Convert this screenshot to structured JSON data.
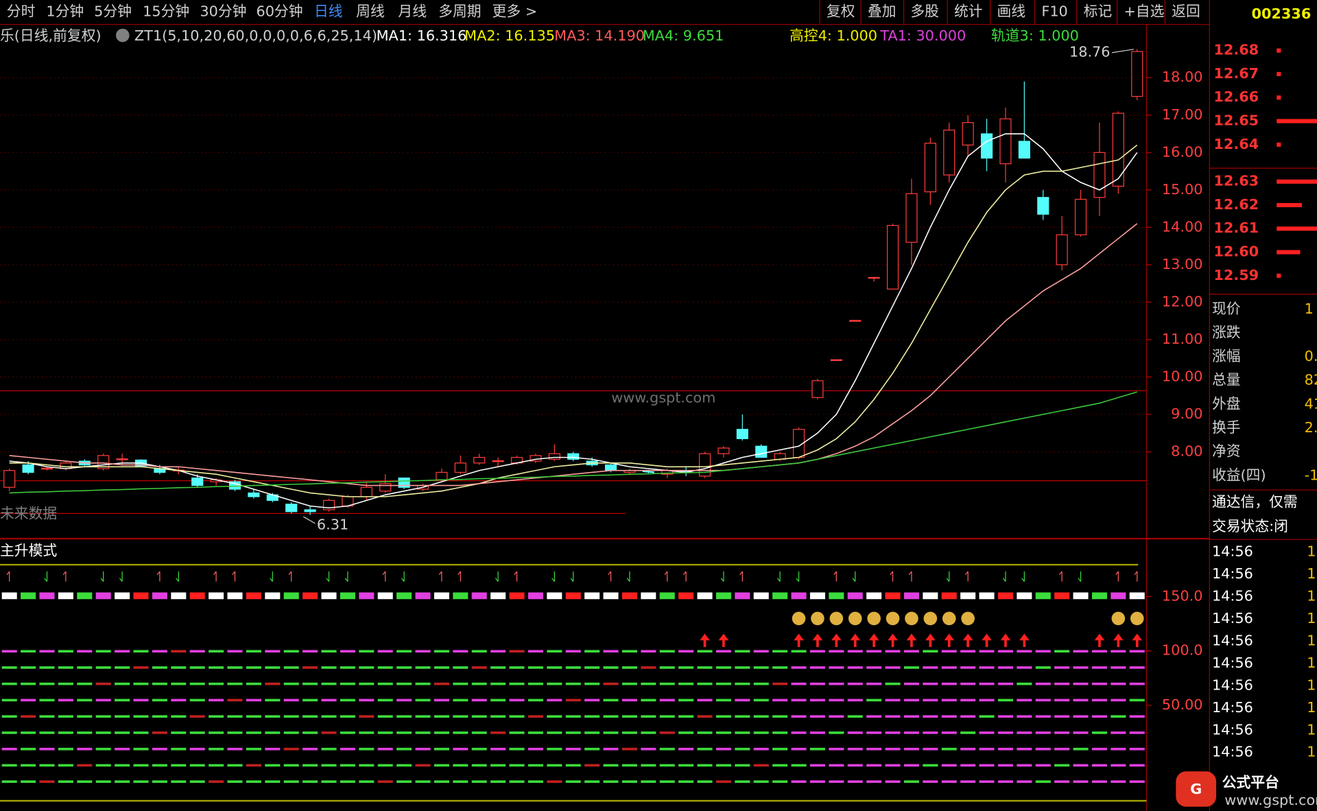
{
  "toolbar": {
    "tabs": [
      "分时",
      "1分钟",
      "5分钟",
      "15分钟",
      "30分钟",
      "60分钟",
      "日线",
      "周线",
      "月线",
      "多周期",
      "更多 >"
    ],
    "active": 6,
    "buttons": [
      "复权",
      "叠加",
      "多股",
      "统计",
      "画线",
      "F10",
      "标记",
      "+自选",
      "返回"
    ],
    "code": "002336"
  },
  "info_bar": {
    "name": "乐(日线,前复权)",
    "indicator": "ZT1(5,10,20,60,0,0,0,0,6,6,25,14)",
    "items": [
      {
        "text": "MA1: 16.316",
        "color": "#ffffff"
      },
      {
        "text": "MA2: 16.135",
        "color": "#f0f000"
      },
      {
        "text": "MA3: 14.190",
        "color": "#ff5a5a"
      },
      {
        "text": "MA4: 9.651",
        "color": "#3cdc3c"
      },
      {
        "text": "高控4: 1.000",
        "color": "#f0f000"
      },
      {
        "text": "TA1: 30.000",
        "color": "#e040e0"
      },
      {
        "text": "轨道3: 1.000",
        "color": "#3cdc3c"
      }
    ]
  },
  "chart_data": {
    "type": "candlestick",
    "categories": [
      null,
      null,
      null,
      null,
      null,
      null,
      null,
      null,
      null,
      null,
      null,
      null,
      null,
      null,
      null,
      null,
      null,
      null,
      null,
      null,
      null,
      null,
      null,
      null,
      null,
      null,
      null,
      null,
      null,
      null,
      null,
      null,
      null,
      null,
      null,
      null,
      null,
      null,
      null,
      null,
      null,
      null,
      null,
      null,
      null,
      null,
      null,
      null,
      null,
      null,
      null,
      null,
      null,
      null,
      null,
      null,
      null,
      null,
      null,
      null,
      null
    ],
    "open": [
      7.05,
      7.65,
      7.55,
      7.55,
      7.75,
      7.55,
      7.8,
      7.78,
      7.55,
      7.5,
      7.3,
      7.2,
      7.2,
      6.9,
      6.85,
      6.6,
      6.45,
      6.45,
      6.55,
      6.8,
      6.95,
      7.3,
      7.0,
      7.25,
      7.45,
      7.7,
      7.75,
      7.7,
      7.75,
      7.8,
      7.95,
      7.75,
      7.65,
      7.45,
      7.48,
      7.4,
      7.5,
      7.35,
      7.95,
      8.6,
      8.15,
      7.8,
      7.85,
      9.45,
      10.45,
      11.5,
      12.65,
      12.35,
      13.6,
      14.95,
      15.4,
      16.2,
      16.5,
      15.7,
      16.3,
      14.8,
      13.0,
      13.8,
      14.8,
      15.1,
      17.5
    ],
    "high": [
      7.55,
      7.75,
      7.6,
      7.75,
      7.8,
      7.95,
      7.95,
      7.8,
      7.65,
      7.6,
      7.4,
      7.3,
      7.25,
      7.0,
      6.9,
      6.65,
      6.55,
      6.75,
      6.85,
      7.2,
      7.4,
      7.3,
      7.15,
      7.55,
      7.9,
      7.95,
      7.85,
      7.9,
      7.95,
      8.2,
      8.0,
      7.85,
      7.7,
      7.55,
      7.52,
      7.55,
      7.6,
      8.0,
      8.15,
      9.0,
      8.2,
      8.0,
      8.65,
      9.95,
      10.45,
      11.5,
      12.68,
      14.1,
      15.3,
      16.4,
      16.8,
      17.0,
      16.9,
      17.2,
      17.9,
      15.0,
      14.3,
      15.0,
      16.8,
      17.1,
      18.76
    ],
    "low": [
      6.95,
      7.4,
      7.5,
      7.5,
      7.6,
      7.5,
      7.65,
      7.6,
      7.4,
      7.4,
      7.05,
      7.1,
      6.95,
      6.75,
      6.65,
      6.35,
      6.31,
      6.4,
      6.5,
      6.7,
      6.9,
      7.0,
      6.95,
      7.2,
      7.4,
      7.65,
      7.6,
      7.65,
      7.7,
      7.75,
      7.75,
      7.6,
      7.45,
      7.4,
      7.4,
      7.3,
      7.35,
      7.3,
      7.85,
      8.3,
      7.85,
      7.75,
      7.8,
      9.4,
      10.45,
      11.5,
      12.55,
      12.35,
      13.0,
      14.6,
      15.2,
      15.9,
      15.5,
      15.2,
      15.9,
      14.2,
      12.85,
      13.75,
      14.3,
      14.9,
      17.4
    ],
    "close": [
      7.5,
      7.45,
      7.55,
      7.7,
      7.65,
      7.9,
      7.8,
      7.62,
      7.45,
      7.5,
      7.1,
      7.25,
      7.0,
      6.8,
      6.7,
      6.4,
      6.4,
      6.7,
      6.8,
      7.05,
      7.15,
      7.05,
      7.1,
      7.45,
      7.7,
      7.85,
      7.75,
      7.85,
      7.9,
      7.95,
      7.8,
      7.65,
      7.5,
      7.5,
      7.45,
      7.5,
      7.45,
      7.95,
      8.1,
      8.35,
      7.85,
      7.95,
      8.6,
      9.9,
      10.45,
      11.5,
      12.65,
      14.05,
      14.9,
      16.25,
      16.6,
      16.8,
      15.85,
      16.9,
      15.85,
      14.35,
      13.8,
      14.75,
      16.0,
      17.05,
      18.7
    ],
    "up_color": "#ff3c3c",
    "down_color": "#54fcfc",
    "series": [
      {
        "color": "#ffffff",
        "values": [
          7.75,
          7.7,
          7.6,
          7.55,
          7.6,
          7.65,
          7.7,
          7.7,
          7.6,
          7.5,
          7.35,
          7.25,
          7.15,
          7.0,
          6.85,
          6.7,
          6.55,
          6.5,
          6.55,
          6.7,
          6.85,
          6.95,
          7.05,
          7.2,
          7.35,
          7.5,
          7.6,
          7.7,
          7.8,
          7.85,
          7.85,
          7.8,
          7.7,
          7.6,
          7.55,
          7.5,
          7.45,
          7.55,
          7.7,
          7.85,
          7.95,
          8.05,
          8.15,
          8.5,
          9.0,
          9.9,
          10.9,
          11.9,
          12.9,
          14.0,
          15.0,
          15.9,
          16.3,
          16.5,
          16.5,
          16.1,
          15.5,
          15.2,
          15.0,
          15.3,
          16.0
        ]
      },
      {
        "color": "#f0f0a0",
        "values": [
          7.7,
          7.7,
          7.65,
          7.6,
          7.6,
          7.6,
          7.6,
          7.6,
          7.55,
          7.5,
          7.45,
          7.4,
          7.3,
          7.2,
          7.1,
          7.0,
          6.9,
          6.85,
          6.8,
          6.8,
          6.8,
          6.85,
          6.9,
          6.95,
          7.05,
          7.15,
          7.3,
          7.4,
          7.5,
          7.6,
          7.65,
          7.7,
          7.7,
          7.7,
          7.65,
          7.6,
          7.6,
          7.6,
          7.65,
          7.7,
          7.75,
          7.8,
          7.85,
          8.05,
          8.35,
          8.8,
          9.4,
          10.1,
          10.9,
          11.8,
          12.7,
          13.6,
          14.4,
          15.0,
          15.4,
          15.5,
          15.5,
          15.6,
          15.7,
          15.8,
          16.2
        ]
      },
      {
        "color": "#ffa0a0",
        "values": [
          7.9,
          7.85,
          7.8,
          7.75,
          7.7,
          7.7,
          7.65,
          7.65,
          7.6,
          7.6,
          7.55,
          7.5,
          7.45,
          7.4,
          7.35,
          7.3,
          7.25,
          7.2,
          7.15,
          7.1,
          7.1,
          7.1,
          7.1,
          7.1,
          7.1,
          7.15,
          7.2,
          7.25,
          7.3,
          7.35,
          7.4,
          7.45,
          7.5,
          7.5,
          7.5,
          7.5,
          7.5,
          7.5,
          7.5,
          7.55,
          7.6,
          7.65,
          7.7,
          7.8,
          7.95,
          8.15,
          8.4,
          8.75,
          9.1,
          9.5,
          10.0,
          10.5,
          11.0,
          11.5,
          11.9,
          12.3,
          12.6,
          12.9,
          13.3,
          13.7,
          14.1
        ]
      },
      {
        "color": "#3cc83c",
        "values": [
          6.9,
          6.92,
          6.93,
          6.95,
          6.96,
          6.98,
          6.99,
          7.01,
          7.02,
          7.04,
          7.05,
          7.07,
          7.08,
          7.1,
          7.11,
          7.13,
          7.14,
          7.16,
          7.17,
          7.19,
          7.2,
          7.22,
          7.23,
          7.25,
          7.26,
          7.28,
          7.29,
          7.31,
          7.32,
          7.34,
          7.35,
          7.37,
          7.38,
          7.4,
          7.41,
          7.43,
          7.44,
          7.45,
          7.5,
          7.55,
          7.6,
          7.65,
          7.7,
          7.8,
          7.9,
          8.0,
          8.1,
          8.2,
          8.3,
          8.4,
          8.5,
          8.6,
          8.7,
          8.8,
          8.9,
          9.0,
          9.1,
          9.2,
          9.3,
          9.45,
          9.6
        ]
      }
    ],
    "ylim": [
      5.7,
      19.4
    ],
    "yticks": [
      {
        "value": 18,
        "label": "18.00"
      },
      {
        "value": 17,
        "label": "17.00"
      },
      {
        "value": 16,
        "label": "16.00"
      },
      {
        "value": 15,
        "label": "15.00"
      },
      {
        "value": 14,
        "label": "14.00"
      },
      {
        "value": 13,
        "label": "13.00"
      },
      {
        "value": 12,
        "label": "12.00"
      },
      {
        "value": 11,
        "label": "11.00"
      },
      {
        "value": 10,
        "label": "10.00"
      },
      {
        "value": 9,
        "label": "9.00"
      },
      {
        "value": 8,
        "label": "8.00"
      }
    ],
    "grid": true,
    "high_label": "18.76",
    "low_label": "6.31",
    "watermark": "www.gspt.com",
    "note": "未来数据"
  },
  "indicator_panel": {
    "title": "主升模式",
    "ylim": [
      -37.7,
      179.2
    ],
    "yticks": [
      {
        "value": 150,
        "label": "150.0"
      },
      {
        "value": 100,
        "label": "100.0"
      },
      {
        "value": 50,
        "label": "50.00"
      }
    ]
  },
  "quote_panel": {
    "levels": [
      {
        "price": "12.68",
        "volume": 5
      },
      {
        "price": "12.67",
        "volume": 5
      },
      {
        "price": "12.66",
        "volume": 5
      },
      {
        "price": "12.65",
        "volume": 50
      },
      {
        "price": "12.64",
        "volume": 5
      },
      {
        "price": "12.63",
        "volume": 50
      },
      {
        "price": "12.62",
        "volume": 30
      },
      {
        "price": "12.61",
        "volume": 50
      },
      {
        "price": "12.60",
        "volume": 28
      },
      {
        "price": "12.59",
        "volume": 5
      }
    ],
    "stats": [
      {
        "label": "现价",
        "value": "1"
      },
      {
        "label": "涨跌",
        "value": ""
      },
      {
        "label": "涨幅",
        "value": "0."
      },
      {
        "label": "总量",
        "value": "82"
      },
      {
        "label": "外盘",
        "value": "41"
      },
      {
        "label": "换手",
        "value": "2."
      },
      {
        "label": "净资",
        "value": ""
      },
      {
        "label": "收益(四)",
        "value": "-1"
      }
    ],
    "notice": "通达信，仅需",
    "trade_state": "交易状态:闭",
    "ticks": [
      {
        "time": "14:56",
        "value": "1"
      },
      {
        "time": "14:56",
        "value": "1"
      },
      {
        "time": "14:56",
        "value": "1"
      },
      {
        "time": "14:56",
        "value": "1"
      },
      {
        "time": "14:56",
        "value": "1"
      },
      {
        "time": "14:56",
        "value": "1"
      },
      {
        "time": "14:56",
        "value": "1"
      },
      {
        "time": "14:56",
        "value": "1"
      },
      {
        "time": "14:56",
        "value": "1"
      },
      {
        "time": "14:56",
        "value": "1"
      }
    ]
  },
  "logo": {
    "name": "公式平台",
    "url": "www.gspt.com"
  }
}
